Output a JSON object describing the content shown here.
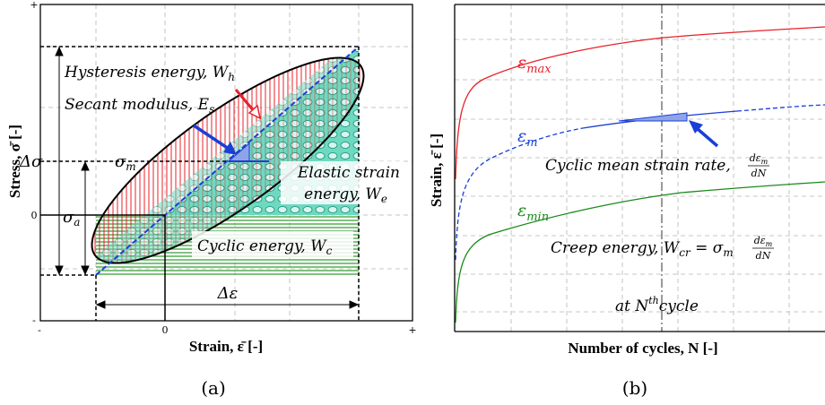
{
  "panel_a": {
    "caption": "(a)",
    "xlabel": "Strain, ε̄ [-]",
    "ylabel": "Stress, σ̄ [-]",
    "x_ticks": [
      "-",
      "0",
      "+"
    ],
    "y_ticks": [
      "+",
      "0",
      "-"
    ],
    "labels": {
      "hysteresis": "Hysteresis energy, W",
      "hysteresis_sub": "h",
      "secant": "Secant modulus, E",
      "secant_sub": "s",
      "delta_sigma": "Δσ",
      "sigma_m": "σ",
      "sigma_m_sub": "m",
      "sigma_a": "σ",
      "sigma_a_sub": "a",
      "elastic_1": "Elastic strain",
      "elastic_2": "energy, W",
      "elastic_sub": "e",
      "cyclic": "Cyclic energy, W",
      "cyclic_sub": "c",
      "delta_eps": "Δε"
    },
    "colors": {
      "hysteresis": "#e8202a",
      "elastic": "#1aaa8a",
      "cyclic": "#2a8a2a",
      "secant": "#1a3fd6"
    }
  },
  "panel_b": {
    "caption": "(b)",
    "xlabel": "Number of cycles, N [-]",
    "ylabel": "Strain, ε̄ [-]",
    "curves": {
      "eps_max": "ε",
      "eps_max_sub": "max",
      "eps_m": "ε",
      "eps_m_sub": "m",
      "eps_min": "ε",
      "eps_min_sub": "min"
    },
    "labels": {
      "rate": "Cyclic mean strain rate,",
      "rate_num": "dε",
      "rate_num_sub": "m",
      "rate_den": "dN",
      "creep": "Creep energy, W",
      "creep_sub": "cr",
      "creep_eq": " = σ",
      "creep_eq_sub": "m",
      "creep_num": "dε",
      "creep_num_sub": "m",
      "creep_den": "dN",
      "cycle": "at N",
      "cycle_sup": "th",
      "cycle_end": "cycle"
    },
    "colors": {
      "eps_max": "#e8202a",
      "eps_m": "#1a3fd6",
      "eps_min": "#1a8a1a"
    }
  }
}
